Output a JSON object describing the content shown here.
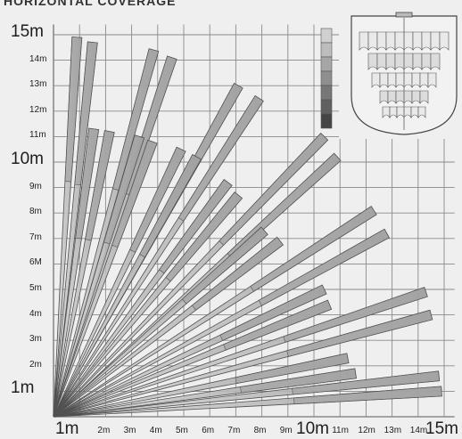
{
  "title": "HORIZONTAL COVERAGE",
  "y_axis": {
    "major": [
      {
        "label": "1m",
        "value": 1
      },
      {
        "label": "10m",
        "value": 10
      },
      {
        "label": "15m",
        "value": 15
      }
    ],
    "minor": [
      {
        "label": "2m",
        "value": 2
      },
      {
        "label": "3m",
        "value": 3
      },
      {
        "label": "4m",
        "value": 4
      },
      {
        "label": "5m",
        "value": 5
      },
      {
        "label": "6M",
        "value": 6
      },
      {
        "label": "7m",
        "value": 7
      },
      {
        "label": "8m",
        "value": 8
      },
      {
        "label": "9m",
        "value": 9
      },
      {
        "label": "11m",
        "value": 11
      },
      {
        "label": "12m",
        "value": 12
      },
      {
        "label": "13m",
        "value": 13
      },
      {
        "label": "14m",
        "value": 14
      }
    ]
  },
  "x_axis": {
    "major": [
      {
        "label": "1m",
        "value": 1
      },
      {
        "label": "10m",
        "value": 10
      },
      {
        "label": "15m",
        "value": 15
      }
    ],
    "minor": [
      {
        "label": "2m",
        "value": 2
      },
      {
        "label": "3m",
        "value": 3
      },
      {
        "label": "4m",
        "value": 4
      },
      {
        "label": "5m",
        "value": 5
      },
      {
        "label": "6m",
        "value": 6
      },
      {
        "label": "7m",
        "value": 7
      },
      {
        "label": "8m",
        "value": 8
      },
      {
        "label": "9m",
        "value": 9
      },
      {
        "label": "11m",
        "value": 11
      },
      {
        "label": "12m",
        "value": 12
      },
      {
        "label": "13m",
        "value": 13
      },
      {
        "label": "14m",
        "value": 14
      }
    ]
  },
  "beams": [
    {
      "x": 0.9,
      "y": 14.9
    },
    {
      "x": 1.5,
      "y": 14.7
    },
    {
      "x": 1.55,
      "y": 11.3
    },
    {
      "x": 2.15,
      "y": 11.2
    },
    {
      "x": 3.85,
      "y": 14.4
    },
    {
      "x": 4.55,
      "y": 14.1
    },
    {
      "x": 3.3,
      "y": 11.0
    },
    {
      "x": 3.8,
      "y": 10.8
    },
    {
      "x": 7.1,
      "y": 13.0
    },
    {
      "x": 7.9,
      "y": 12.5
    },
    {
      "x": 4.9,
      "y": 10.5
    },
    {
      "x": 5.5,
      "y": 10.2
    },
    {
      "x": 6.7,
      "y": 9.2
    },
    {
      "x": 7.1,
      "y": 8.7
    },
    {
      "x": 10.4,
      "y": 11.0
    },
    {
      "x": 10.9,
      "y": 10.2
    },
    {
      "x": 8.1,
      "y": 7.3
    },
    {
      "x": 8.7,
      "y": 6.9
    },
    {
      "x": 12.3,
      "y": 8.1
    },
    {
      "x": 12.8,
      "y": 7.2
    },
    {
      "x": 10.4,
      "y": 5.0
    },
    {
      "x": 10.6,
      "y": 4.4
    },
    {
      "x": 14.3,
      "y": 4.9
    },
    {
      "x": 14.5,
      "y": 4.0
    },
    {
      "x": 11.3,
      "y": 2.3
    },
    {
      "x": 11.6,
      "y": 1.7
    },
    {
      "x": 14.8,
      "y": 1.6
    },
    {
      "x": 14.9,
      "y": 1.0
    }
  ],
  "inset": {
    "legend_colors": [
      "#d0d0d0",
      "#bdbdbd",
      "#a6a6a6",
      "#8f8f8f",
      "#777777",
      "#606060",
      "#454545"
    ]
  },
  "colors": {
    "background": "#efefef",
    "grid": "#8a8a8a",
    "beam_fill_far": "#a4a4a4",
    "beam_fill_near": "#cfcfcf",
    "beam_stroke": "#505050"
  }
}
